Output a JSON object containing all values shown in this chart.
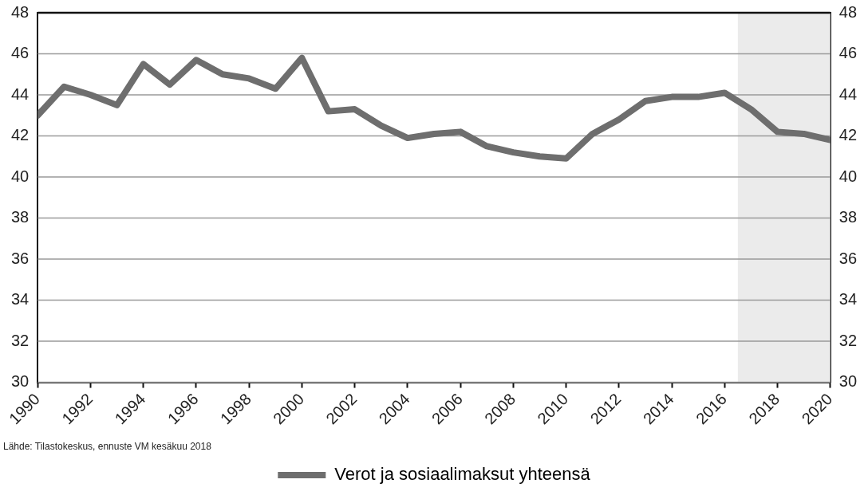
{
  "chart_data": {
    "type": "line",
    "x": [
      1990,
      1991,
      1992,
      1993,
      1994,
      1995,
      1996,
      1997,
      1998,
      1999,
      2000,
      2001,
      2002,
      2003,
      2004,
      2005,
      2006,
      2007,
      2008,
      2009,
      2010,
      2011,
      2012,
      2013,
      2014,
      2015,
      2016,
      2017,
      2018,
      2019,
      2020
    ],
    "series": [
      {
        "name": "Verot ja sosiaalimaksut yhteensä",
        "color": "#6e6e6e",
        "values": [
          43.0,
          44.4,
          44.0,
          43.5,
          45.5,
          44.5,
          45.7,
          45.0,
          44.8,
          44.3,
          45.8,
          43.2,
          43.3,
          42.5,
          41.9,
          42.1,
          42.2,
          41.5,
          41.2,
          41.0,
          40.9,
          42.1,
          42.8,
          43.7,
          43.9,
          43.9,
          44.1,
          43.3,
          42.2,
          42.1,
          41.8
        ]
      }
    ],
    "xlim": [
      1990,
      2020
    ],
    "xticks": [
      1990,
      1992,
      1994,
      1996,
      1998,
      2000,
      2002,
      2004,
      2006,
      2008,
      2010,
      2012,
      2014,
      2016,
      2018,
      2020
    ],
    "ylim": [
      30,
      48
    ],
    "yticks": [
      30,
      32,
      34,
      36,
      38,
      40,
      42,
      44,
      46,
      48
    ],
    "y2lim": [
      30,
      48
    ],
    "y2ticks": [
      30,
      32,
      34,
      36,
      38,
      40,
      42,
      44,
      46,
      48
    ],
    "bands": [
      {
        "axis": "x",
        "from": 2016.5,
        "to": 2020,
        "color": "#ebebeb"
      }
    ],
    "grid": "y",
    "legend": "bottom",
    "marker": "none",
    "line_style": "solid",
    "annotations": [
      "Lähde: Tilastokeskus, ennuste VM kesäkuu 2018"
    ]
  }
}
